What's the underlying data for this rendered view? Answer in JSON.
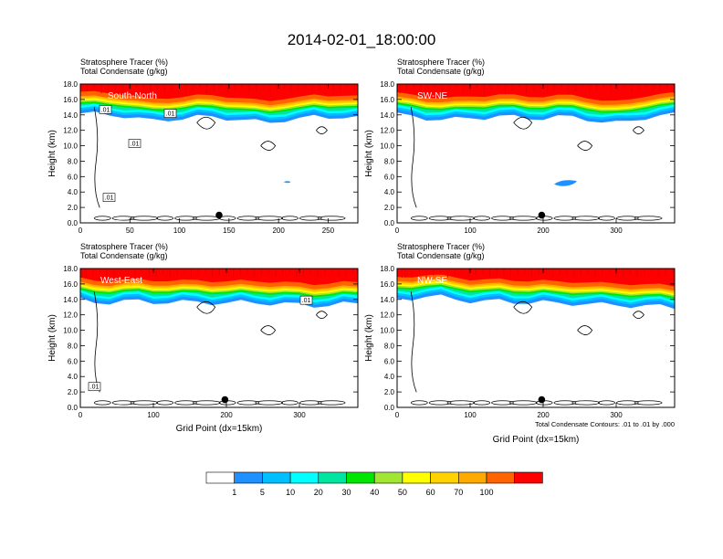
{
  "title": "2014-02-01_18:00:00",
  "chart_data": [
    {
      "type": "heatmap",
      "panel": "South-North",
      "title_lines": [
        "Stratosphere Tracer   (%)",
        "Total Condensate   (g/kg)"
      ],
      "ylabel": "Height (km)",
      "xlabel": "",
      "xlim": [
        0,
        280
      ],
      "ylim": [
        0,
        18
      ],
      "xticks": [
        0,
        50,
        100,
        150,
        200,
        250
      ],
      "yticks": [
        "0.0",
        "2.0",
        "4.0",
        "6.0",
        "8.0",
        "10.0",
        "12.0",
        "14.0",
        "16.0",
        "18.0"
      ],
      "marker_x": 140,
      "contour_labels": [
        ".01",
        ".01",
        ".01",
        ".01"
      ],
      "top_y": [
        16.6,
        16.5,
        16.4,
        16.3,
        15.9,
        15.6,
        15.8,
        16.0,
        16.1,
        16.1,
        16.0,
        15.8,
        15.5,
        15.4,
        15.8,
        15.9,
        16.1,
        16.1,
        16.2,
        16.0
      ]
    },
    {
      "type": "heatmap",
      "panel": "SW-NE",
      "title_lines": [
        "Stratosphere Tracer   (%)",
        "Total Condensate   (g/kg)"
      ],
      "ylabel": "Height (km)",
      "xlabel": "",
      "xlim": [
        0,
        380
      ],
      "ylim": [
        0,
        18
      ],
      "xticks": [
        0,
        100,
        200,
        300
      ],
      "yticks": [
        "0.0",
        "2.0",
        "4.0",
        "6.0",
        "8.0",
        "10.0",
        "12.0",
        "14.0",
        "16.0",
        "18.0"
      ],
      "marker_x": 198,
      "contour_labels": [],
      "top_y": [
        16.4,
        16.2,
        16.0,
        15.8,
        15.8,
        16.0,
        16.1,
        16.2,
        16.1,
        16.0,
        16.0,
        16.1,
        16.1,
        15.9,
        15.5,
        15.3,
        15.6,
        16.1,
        16.3,
        16.4
      ]
    },
    {
      "type": "heatmap",
      "panel": "West-East",
      "title_lines": [
        "Stratosphere Tracer   (%)",
        "Total Condensate   (g/kg)"
      ],
      "ylabel": "Height (km)",
      "xlabel": "Grid Point (dx=15km)",
      "xlim": [
        0,
        380
      ],
      "ylim": [
        0,
        18
      ],
      "xticks": [
        0,
        100,
        200,
        300
      ],
      "yticks": [
        "0.0",
        "2.0",
        "4.0",
        "6.0",
        "8.0",
        "10.0",
        "12.0",
        "14.0",
        "16.0",
        "18.0"
      ],
      "marker_x": 198,
      "contour_labels": [
        ".01",
        ".01"
      ],
      "top_y": [
        16.3,
        16.1,
        16.0,
        16.1,
        16.2,
        16.1,
        16.0,
        16.0,
        16.1,
        16.0,
        15.9,
        16.0,
        16.0,
        15.9,
        15.8,
        15.7,
        15.6,
        15.7,
        15.8,
        15.8
      ]
    },
    {
      "type": "heatmap",
      "panel": "NW-SE",
      "title_lines": [
        "Stratosphere Tracer   (%)",
        "Total Condensate   (g/kg)"
      ],
      "ylabel": "Height (km)",
      "xlabel": "Grid Point (dx=15km)",
      "xlim": [
        0,
        380
      ],
      "ylim": [
        0,
        18
      ],
      "xticks": [
        0,
        100,
        200,
        300
      ],
      "yticks": [
        "0.0",
        "2.0",
        "4.0",
        "6.0",
        "8.0",
        "10.0",
        "12.0",
        "14.0",
        "16.0",
        "18.0"
      ],
      "marker_x": 198,
      "contour_labels": [],
      "note": "Total Condensate Contours: .01 to .01 by .000",
      "top_y": [
        16.5,
        16.6,
        16.7,
        16.7,
        16.5,
        16.2,
        16.1,
        16.2,
        16.1,
        16.0,
        16.0,
        15.9,
        15.9,
        15.8,
        15.7,
        15.7,
        15.6,
        15.5,
        15.5,
        15.4
      ]
    }
  ],
  "colorbar": {
    "levels": [
      "1",
      "5",
      "10",
      "20",
      "30",
      "40",
      "50",
      "60",
      "70",
      "100"
    ],
    "colors": [
      "#ffffff",
      "#1e90ff",
      "#00bfff",
      "#00ffff",
      "#00e6a0",
      "#00e600",
      "#a0e632",
      "#ffff00",
      "#ffd200",
      "#ffaa00",
      "#ff6400",
      "#ff0000"
    ]
  }
}
